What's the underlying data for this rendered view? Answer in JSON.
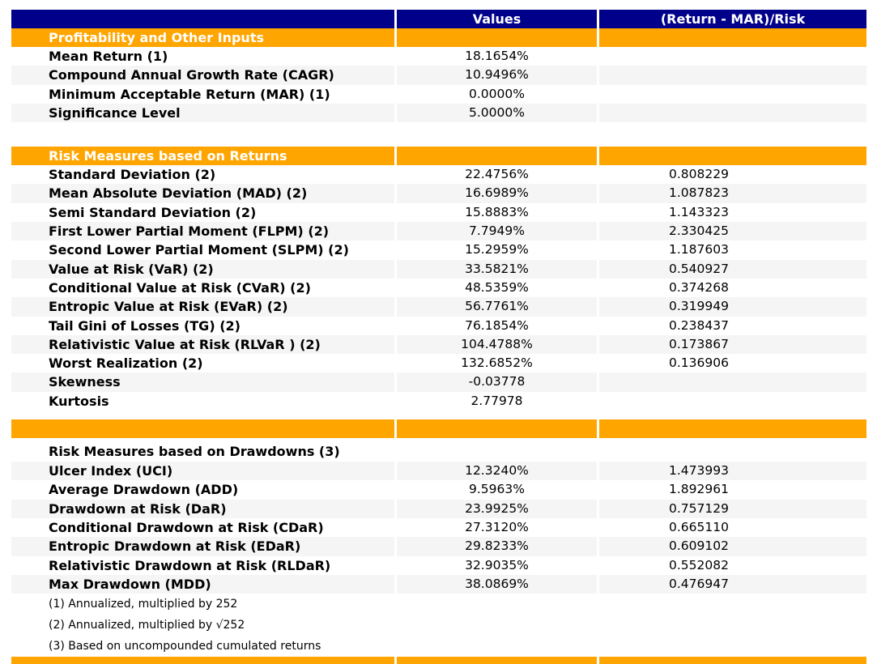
{
  "report": {
    "colors": {
      "header_bg": "#00008B",
      "section_bg": "#FFA500",
      "stripe_bg": "#F5F5F5",
      "header_text": "#FFFFFF",
      "body_text": "#000000"
    },
    "columns": {
      "label": "",
      "values": "Values",
      "risk": "(Return - MAR)/Risk"
    },
    "rows": [
      {
        "type": "section",
        "label": "Profitability and Other Inputs"
      },
      {
        "type": "data",
        "shade": false,
        "label": "Mean Return (1)",
        "values": "18.1654%",
        "risk": ""
      },
      {
        "type": "data",
        "shade": true,
        "label": "Compound Annual Growth Rate (CAGR)",
        "values": "10.9496%",
        "risk": ""
      },
      {
        "type": "data",
        "shade": false,
        "label": "Minimum Acceptable Return (MAR) (1)",
        "values": "0.0000%",
        "risk": ""
      },
      {
        "type": "data",
        "shade": true,
        "label": "Significance Level",
        "values": "5.0000%",
        "risk": ""
      },
      {
        "type": "spacer",
        "size": "gap-large"
      },
      {
        "type": "section",
        "label": "Risk Measures based on Returns"
      },
      {
        "type": "data",
        "shade": false,
        "label": "Standard Deviation (2)",
        "values": "22.4756%",
        "risk": "0.808229"
      },
      {
        "type": "data",
        "shade": true,
        "label": "Mean Absolute Deviation (MAD) (2)",
        "values": "16.6989%",
        "risk": "1.087823"
      },
      {
        "type": "data",
        "shade": false,
        "label": "Semi Standard Deviation (2)",
        "values": "15.8883%",
        "risk": "1.143323"
      },
      {
        "type": "data",
        "shade": true,
        "label": "First Lower Partial Moment (FLPM) (2)",
        "values": "7.7949%",
        "risk": "2.330425"
      },
      {
        "type": "data",
        "shade": false,
        "label": "Second Lower Partial Moment (SLPM) (2)",
        "values": "15.2959%",
        "risk": "1.187603"
      },
      {
        "type": "data",
        "shade": true,
        "label": "Value at Risk (VaR) (2)",
        "values": "33.5821%",
        "risk": "0.540927"
      },
      {
        "type": "data",
        "shade": false,
        "label": "Conditional Value at Risk (CVaR) (2)",
        "values": "48.5359%",
        "risk": "0.374268"
      },
      {
        "type": "data",
        "shade": true,
        "label": "Entropic Value at Risk (EVaR) (2)",
        "values": "56.7761%",
        "risk": "0.319949"
      },
      {
        "type": "data",
        "shade": false,
        "label": "Tail Gini of Losses (TG) (2)",
        "values": "76.1854%",
        "risk": "0.238437"
      },
      {
        "type": "data",
        "shade": true,
        "label": "Relativistic Value at Risk (RLVaR ) (2)",
        "values": "104.4788%",
        "risk": "0.173867"
      },
      {
        "type": "data",
        "shade": false,
        "label": "Worst Realization (2)",
        "values": "132.6852%",
        "risk": "0.136906"
      },
      {
        "type": "data",
        "shade": true,
        "label": "Skewness",
        "values": "-0.03778",
        "risk": ""
      },
      {
        "type": "data",
        "shade": false,
        "label": "Kurtosis",
        "values": "2.77978",
        "risk": ""
      },
      {
        "type": "spacer",
        "size": "gap-small"
      },
      {
        "type": "section",
        "label": ""
      },
      {
        "type": "spacer",
        "size": "gap-tiny"
      },
      {
        "type": "subtitle",
        "label": "Risk Measures based on Drawdowns (3)"
      },
      {
        "type": "data",
        "shade": true,
        "label": "Ulcer Index (UCI)",
        "values": "12.3240%",
        "risk": "1.473993"
      },
      {
        "type": "data",
        "shade": false,
        "label": "Average Drawdown (ADD)",
        "values": "9.5963%",
        "risk": "1.892961"
      },
      {
        "type": "data",
        "shade": true,
        "label": "Drawdown at Risk (DaR)",
        "values": "23.9925%",
        "risk": "0.757129"
      },
      {
        "type": "data",
        "shade": false,
        "label": "Conditional Drawdown at Risk (CDaR)",
        "values": "27.3120%",
        "risk": "0.665110"
      },
      {
        "type": "data",
        "shade": true,
        "label": "Entropic Drawdown at Risk (EDaR)",
        "values": "29.8233%",
        "risk": "0.609102"
      },
      {
        "type": "data",
        "shade": false,
        "label": "Relativistic Drawdown at Risk (RLDaR)",
        "values": "32.9035%",
        "risk": "0.552082"
      },
      {
        "type": "data",
        "shade": true,
        "label": "Max Drawdown (MDD)",
        "values": "38.0869%",
        "risk": "0.476947"
      },
      {
        "type": "footnote",
        "label": "(1) Annualized, multiplied by 252"
      },
      {
        "type": "footnote",
        "label": "(2) Annualized, multiplied by √252"
      },
      {
        "type": "footnote",
        "label": "(3) Based on uncompounded cumulated returns"
      },
      {
        "type": "bottombar"
      }
    ]
  }
}
